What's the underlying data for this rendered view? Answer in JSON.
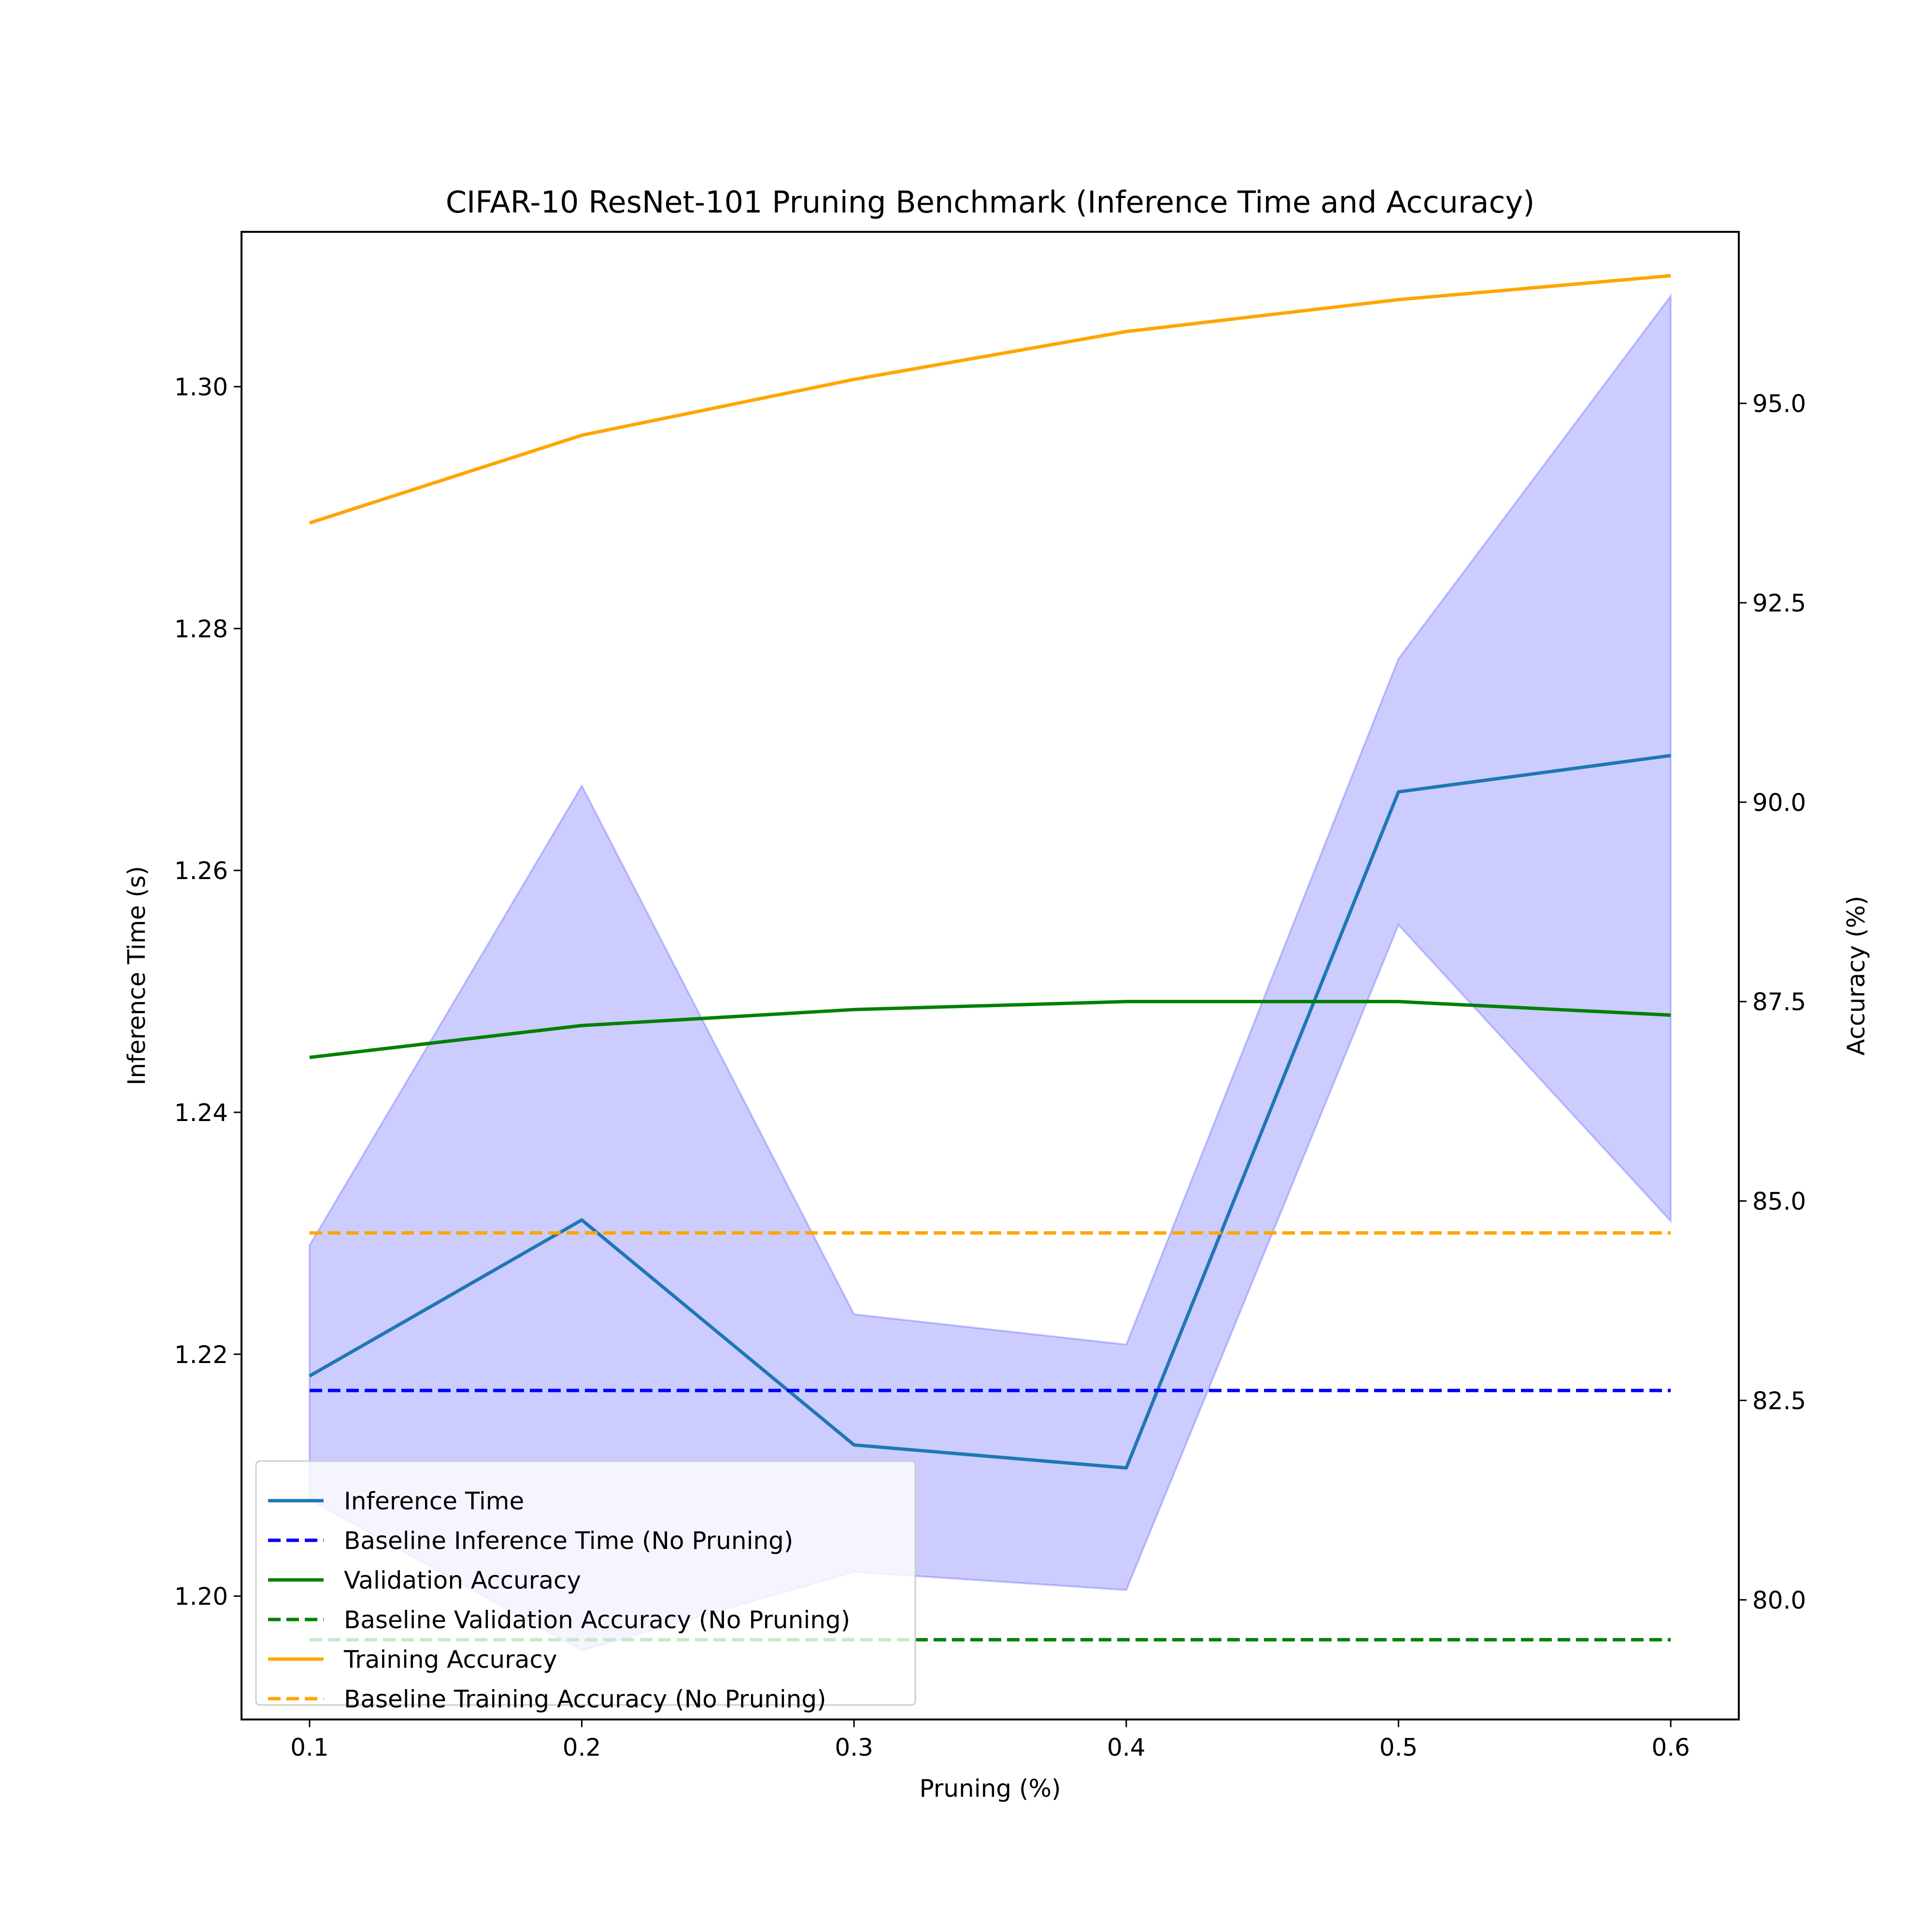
{
  "chart_data": {
    "type": "line",
    "title": "CIFAR-10 ResNet-101 Pruning Benchmark (Inference Time and Accuracy)",
    "xlabel": "Pruning (%)",
    "ylabel_left": "Inference Time (s)",
    "ylabel_right": "Accuracy (%)",
    "x": [
      0.1,
      0.2,
      0.3,
      0.4,
      0.5,
      0.6
    ],
    "x_ticks": [
      "0.1",
      "0.2",
      "0.3",
      "0.4",
      "0.5",
      "0.6"
    ],
    "xlim": [
      0.075,
      0.625
    ],
    "ylim_left": [
      1.1898,
      1.3128
    ],
    "ylim_right": [
      78.5,
      97.15
    ],
    "y_ticks_left": [
      "1.20",
      "1.22",
      "1.24",
      "1.26",
      "1.28",
      "1.30"
    ],
    "y_ticks_right": [
      "80.0",
      "82.5",
      "85.0",
      "87.5",
      "90.0",
      "92.5",
      "95.0"
    ],
    "grid": false,
    "legend_position": "lower-left",
    "band": {
      "axis": "left",
      "color": "#0000ff",
      "lower": [
        1.208,
        1.1955,
        1.202,
        1.2005,
        1.2555,
        1.231
      ],
      "upper": [
        1.229,
        1.267,
        1.2233,
        1.2208,
        1.2775,
        1.3075
      ]
    },
    "series": [
      {
        "name": "Inference Time",
        "axis": "left",
        "style": "solid",
        "color": "#1f77b4",
        "values": [
          1.2182,
          1.2311,
          1.2125,
          1.2106,
          1.2665,
          1.2695
        ]
      },
      {
        "name": "Baseline Inference Time (No Pruning)",
        "axis": "left",
        "style": "dashed",
        "color": "#0000ff",
        "values": [
          1.217,
          1.217,
          1.217,
          1.217,
          1.217,
          1.217
        ]
      },
      {
        "name": "Validation Accuracy",
        "axis": "right",
        "style": "solid",
        "color": "#008000",
        "values": [
          86.8,
          87.2,
          87.4,
          87.5,
          87.5,
          87.33
        ]
      },
      {
        "name": "Baseline Validation Accuracy (No Pruning)",
        "axis": "right",
        "style": "dashed",
        "color": "#008000",
        "values": [
          79.5,
          79.5,
          79.5,
          79.5,
          79.5,
          79.5
        ]
      },
      {
        "name": "Training Accuracy",
        "axis": "right",
        "style": "solid",
        "color": "#ffa500",
        "values": [
          93.5,
          94.6,
          95.3,
          95.9,
          96.3,
          96.6
        ]
      },
      {
        "name": "Baseline Training Accuracy (No Pruning)",
        "axis": "right",
        "style": "dashed",
        "color": "#ffa500",
        "values": [
          84.6,
          84.6,
          84.6,
          84.6,
          84.6,
          84.6
        ]
      }
    ]
  }
}
